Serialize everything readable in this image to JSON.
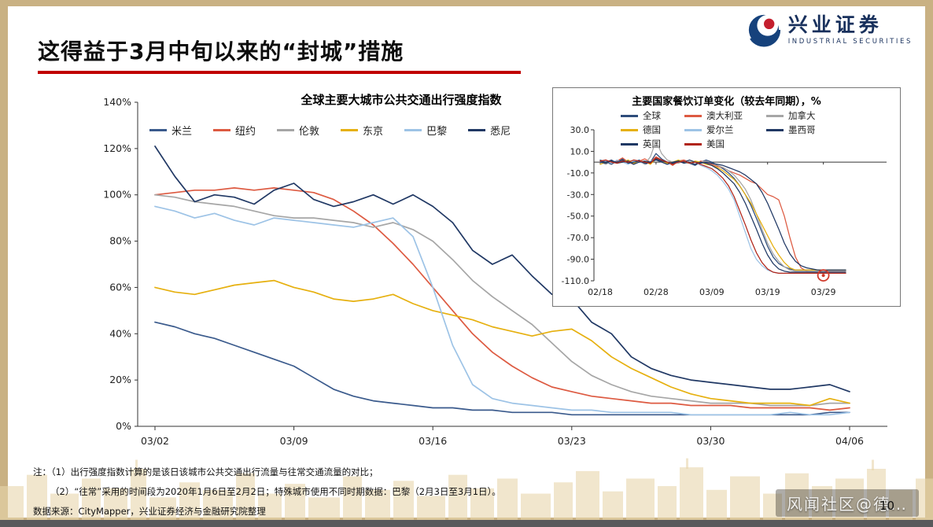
{
  "page": {
    "title": "这得益于3月中旬以来的“封城”措施",
    "page_number": "10",
    "watermark": "风闻社区@德…",
    "colors": {
      "background": "#c9b183",
      "accent_red": "#c00000",
      "logo_navy": "#18305c"
    }
  },
  "logo": {
    "name": "兴业证券",
    "subtitle": "INDUSTRIAL SECURITIES",
    "icon": "swirl-logo"
  },
  "footnotes": [
    "注：（1）出行强度指数计算的是该日该城市公共交通出行流量与往常交通流量的对比；",
    "（2）“往常”采用的时间段为2020年1月6日至2月2日；特殊城市使用不同时期数据：巴黎（2月3日至3月1日）。",
    "数据来源：CityMapper，兴业证券经济与金融研究院整理"
  ],
  "chart_data": [
    {
      "type": "line",
      "title": "全球主要大城市公共交通出行强度指数",
      "ylim": [
        0,
        140
      ],
      "ytick_values": [
        140,
        120,
        100,
        80,
        60,
        40,
        20,
        0
      ],
      "ytick_labels": [
        "140%",
        "120%",
        "100%",
        "80%",
        "60%",
        "40%",
        "20%",
        "0%"
      ],
      "x_labels": [
        "03/02",
        "03/09",
        "03/16",
        "03/23",
        "03/30",
        "04/06"
      ],
      "x_label_positions": [
        0,
        7,
        14,
        21,
        28,
        35
      ],
      "baseline": 0,
      "grid": false,
      "legend_position": "top",
      "series": [
        {
          "name": "米兰",
          "color": "#3a5a8c",
          "values": [
            45,
            43,
            40,
            38,
            35,
            32,
            29,
            26,
            21,
            16,
            13,
            11,
            10,
            9,
            8,
            8,
            7,
            7,
            6,
            6,
            6,
            5,
            5,
            5,
            5,
            5,
            5,
            5,
            5,
            5,
            5,
            5,
            5,
            5,
            6,
            6
          ]
        },
        {
          "name": "纽约",
          "color": "#dd5a41",
          "values": [
            100,
            101,
            102,
            102,
            103,
            102,
            103,
            102,
            101,
            98,
            93,
            87,
            79,
            70,
            60,
            50,
            40,
            32,
            26,
            21,
            17,
            15,
            13,
            12,
            11,
            10,
            10,
            9,
            9,
            9,
            8,
            8,
            8,
            8,
            7,
            8
          ]
        },
        {
          "name": "伦敦",
          "color": "#a6a6a6",
          "values": [
            100,
            99,
            97,
            96,
            95,
            93,
            91,
            90,
            90,
            89,
            88,
            86,
            88,
            85,
            80,
            72,
            63,
            56,
            50,
            44,
            36,
            28,
            22,
            18,
            15,
            13,
            12,
            11,
            10,
            10,
            10,
            9,
            9,
            9,
            10,
            10
          ]
        },
        {
          "name": "东京",
          "color": "#e6b00f",
          "values": [
            60,
            58,
            57,
            59,
            61,
            62,
            63,
            60,
            58,
            55,
            54,
            55,
            57,
            53,
            50,
            48,
            46,
            43,
            41,
            39,
            41,
            42,
            37,
            30,
            25,
            21,
            17,
            14,
            12,
            11,
            10,
            10,
            10,
            9,
            12,
            10
          ]
        },
        {
          "name": "巴黎",
          "color": "#9dc3e6",
          "values": [
            95,
            93,
            90,
            92,
            89,
            87,
            90,
            89,
            88,
            87,
            86,
            88,
            90,
            82,
            60,
            35,
            18,
            12,
            10,
            9,
            8,
            7,
            7,
            6,
            6,
            6,
            6,
            5,
            5,
            5,
            5,
            5,
            6,
            5,
            5,
            6
          ]
        },
        {
          "name": "悉尼",
          "color": "#203864",
          "values": [
            121,
            108,
            97,
            100,
            99,
            96,
            102,
            105,
            98,
            95,
            97,
            100,
            96,
            100,
            95,
            88,
            76,
            70,
            74,
            65,
            57,
            55,
            45,
            40,
            30,
            25,
            22,
            20,
            19,
            18,
            17,
            16,
            16,
            17,
            18,
            15
          ]
        }
      ]
    },
    {
      "type": "line",
      "title": "主要国家餐饮订单变化（较去年同期），%",
      "ylim": [
        -110,
        30
      ],
      "ytick_values": [
        30,
        10,
        -10,
        -30,
        -50,
        -70,
        -90,
        -110
      ],
      "ytick_labels": [
        "30.0",
        "10.0",
        "-10.0",
        "-30.0",
        "-50.0",
        "-70.0",
        "-90.0",
        "-110.0"
      ],
      "x_labels": [
        "02/18",
        "02/28",
        "03/09",
        "03/19",
        "03/29"
      ],
      "x_label_positions": [
        0,
        10,
        20,
        30,
        40
      ],
      "baseline": 0,
      "grid": false,
      "legend_position": "top",
      "highlight": {
        "x": 40,
        "y": -105
      },
      "series": [
        {
          "name": "全球",
          "color": "#2e4d7b",
          "values": [
            2,
            0,
            -2,
            1,
            3,
            -1,
            0,
            2,
            -2,
            0,
            8,
            3,
            0,
            -2,
            1,
            0,
            -1,
            -3,
            0,
            2,
            0,
            -3,
            -6,
            -10,
            -15,
            -22,
            -30,
            -40,
            -52,
            -65,
            -78,
            -88,
            -94,
            -97,
            -99,
            -100,
            -100,
            -100,
            -100,
            -100,
            -100,
            -100,
            -100,
            -100,
            -100
          ]
        },
        {
          "name": "澳大利亚",
          "color": "#dd5a41",
          "values": [
            0,
            2,
            -1,
            1,
            4,
            0,
            -2,
            1,
            3,
            0,
            5,
            2,
            0,
            -3,
            1,
            2,
            0,
            -2,
            1,
            0,
            -2,
            -4,
            -5,
            -8,
            -10,
            -12,
            -15,
            -18,
            -20,
            -25,
            -30,
            -32,
            -35,
            -50,
            -70,
            -88,
            -98,
            -101,
            -102,
            -102,
            -102,
            -101,
            -101,
            -101,
            -101
          ]
        },
        {
          "name": "加拿大",
          "color": "#a6a6a6",
          "values": [
            0,
            -2,
            1,
            0,
            2,
            -1,
            0,
            1,
            -2,
            5,
            20,
            8,
            2,
            0,
            -1,
            1,
            0,
            -2,
            0,
            1,
            -1,
            -3,
            -5,
            -8,
            -12,
            -18,
            -25,
            -35,
            -48,
            -62,
            -75,
            -85,
            -92,
            -97,
            -100,
            -101,
            -101,
            -101,
            -101,
            -101,
            -101,
            -101,
            -101,
            -101,
            -101
          ]
        },
        {
          "name": "德国",
          "color": "#e6b00f",
          "values": [
            -2,
            0,
            1,
            -1,
            0,
            2,
            -1,
            0,
            1,
            -2,
            3,
            1,
            -1,
            0,
            2,
            0,
            -1,
            1,
            0,
            -2,
            -3,
            -5,
            -8,
            -12,
            -16,
            -22,
            -30,
            -38,
            -48,
            -58,
            -68,
            -78,
            -86,
            -93,
            -98,
            -100,
            -100,
            -100,
            -100,
            -100,
            -100,
            -100,
            -100,
            -100,
            -100
          ]
        },
        {
          "name": "爱尔兰",
          "color": "#9dc3e6",
          "values": [
            0,
            1,
            -1,
            2,
            0,
            -2,
            1,
            0,
            -1,
            1,
            2,
            0,
            -2,
            -1,
            0,
            1,
            -1,
            0,
            -3,
            -5,
            -8,
            -12,
            -18,
            -25,
            -35,
            -50,
            -65,
            -80,
            -90,
            -96,
            -100,
            -102,
            -103,
            -103,
            -103,
            -103,
            -103,
            -103,
            -103,
            -103,
            -103,
            -103,
            -103,
            -103,
            -103
          ]
        },
        {
          "name": "墨西哥",
          "color": "#203864",
          "values": [
            1,
            0,
            2,
            -1,
            0,
            1,
            -2,
            0,
            1,
            0,
            3,
            1,
            0,
            -1,
            1,
            0,
            2,
            0,
            -1,
            0,
            -1,
            -2,
            -3,
            -5,
            -7,
            -9,
            -12,
            -16,
            -20,
            -28,
            -38,
            -50,
            -62,
            -75,
            -85,
            -92,
            -96,
            -98,
            -99,
            -100,
            -100,
            -100,
            -100,
            -100,
            -100
          ]
        },
        {
          "name": "英国",
          "color": "#1f3864",
          "values": [
            0,
            -1,
            1,
            0,
            2,
            -1,
            0,
            1,
            -1,
            0,
            2,
            0,
            -2,
            0,
            1,
            -1,
            0,
            -2,
            0,
            -1,
            -3,
            -6,
            -10,
            -15,
            -20,
            -28,
            -38,
            -50,
            -62,
            -75,
            -86,
            -94,
            -99,
            -101,
            -102,
            -102,
            -102,
            -102,
            -102,
            -102,
            -102,
            -102,
            -102,
            -102,
            -102
          ]
        },
        {
          "name": "美国",
          "color": "#b02418",
          "values": [
            1,
            2,
            0,
            -1,
            1,
            0,
            2,
            1,
            0,
            -1,
            4,
            2,
            0,
            -2,
            0,
            1,
            -1,
            0,
            -2,
            -4,
            -6,
            -10,
            -15,
            -22,
            -32,
            -45,
            -58,
            -72,
            -84,
            -93,
            -99,
            -102,
            -103,
            -103,
            -103,
            -103,
            -103,
            -103,
            -103,
            -103,
            -103,
            -103,
            -103,
            -103,
            -103
          ]
        }
      ]
    }
  ]
}
